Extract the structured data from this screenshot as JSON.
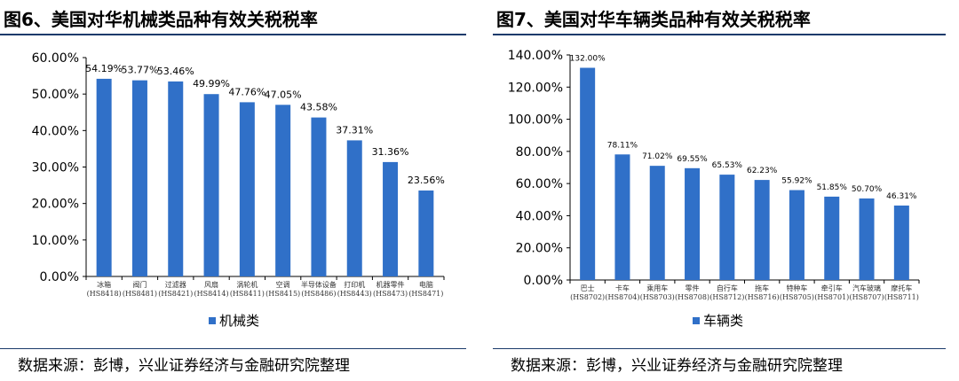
{
  "chart_data": [
    {
      "type": "bar",
      "title": "图6、美国对华机械类品种有效关税税率",
      "source": "数据来源：彭博，兴业证券经济与金融研究院整理",
      "categories": [
        "冰箱\n(HS8418)",
        "阀门\n(HS8481)",
        "过滤器\n(HS8421)",
        "风扇\n(HS8414)",
        "涡轮机\n(HS8411)",
        "空调\n(HS8415)",
        "半导体设备\n(HS8486)",
        "打印机\n(HS8443)",
        "机器零件\n(HS8473)",
        "电脑\n(HS8471)"
      ],
      "series": [
        {
          "name": "机械类",
          "values": [
            54.19,
            53.77,
            53.46,
            49.99,
            47.76,
            47.05,
            43.58,
            37.31,
            31.36,
            23.56
          ]
        }
      ],
      "ylim": [
        0,
        60
      ],
      "yticks": [
        0,
        10,
        20,
        30,
        40,
        50,
        60
      ],
      "legend": "bottom",
      "grid": false,
      "color": "#3070c8"
    },
    {
      "type": "bar",
      "title": "图7、美国对华车辆类品种有效关税税率",
      "source": "数据来源：彭博，兴业证券经济与金融研究院整理",
      "categories": [
        "巴士\n(HS8702)",
        "卡车\n(HS8704)",
        "乘用车\n(HS8703)",
        "零件\n(HS8708)",
        "自行车\n(HS8712)",
        "拖车\n(HS8716)",
        "特种车\n(HS8705)",
        "牵引车\n(HS8701)",
        "汽车玻璃\n(HS8707)",
        "摩托车\n(HS8711)"
      ],
      "series": [
        {
          "name": "车辆类",
          "values": [
            132.0,
            78.11,
            71.02,
            69.55,
            65.53,
            62.23,
            55.92,
            51.85,
            50.7,
            46.31
          ]
        }
      ],
      "ylim": [
        0,
        140
      ],
      "yticks": [
        0,
        20,
        40,
        60,
        80,
        100,
        120,
        140
      ],
      "legend": "bottom",
      "grid": false,
      "color": "#3070c8"
    }
  ]
}
